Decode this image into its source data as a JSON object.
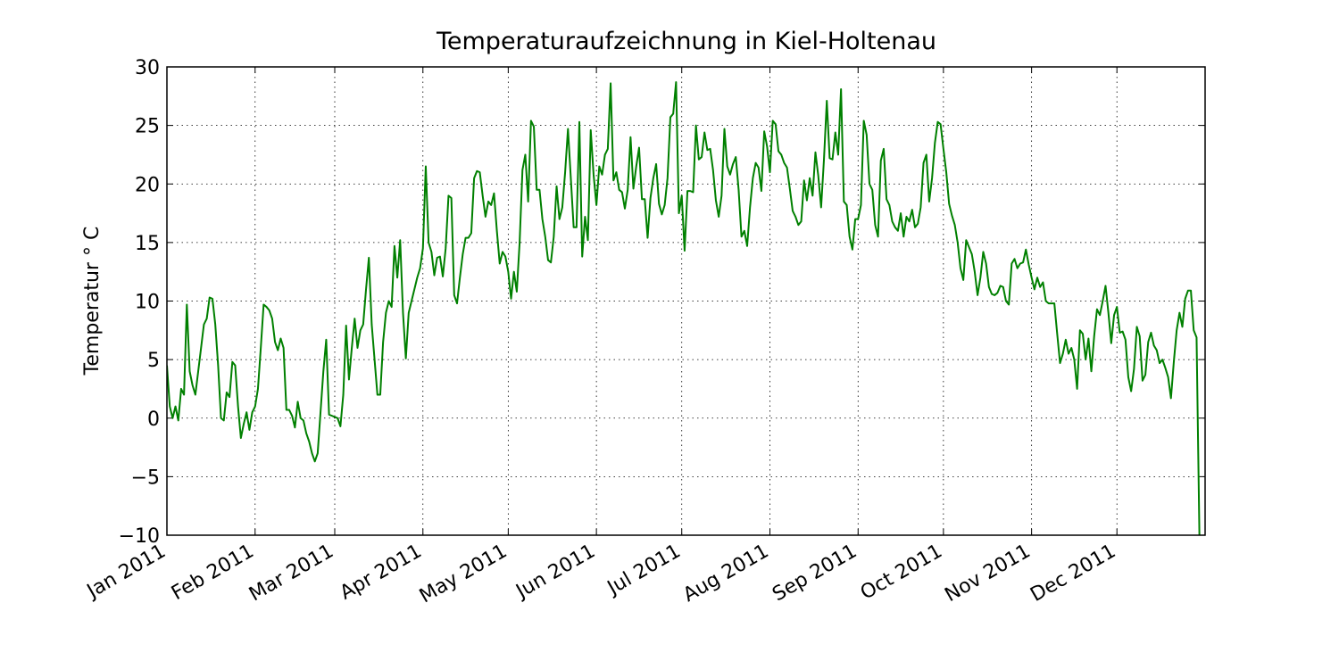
{
  "chart_data": {
    "type": "line",
    "title": "Temperaturaufzeichnung in Kiel-Holtenau",
    "ylabel": "Temperatur ° C",
    "color": "#008000",
    "grid": true,
    "xlim": [
      0,
      365
    ],
    "xticks": [
      {
        "value": 0,
        "label": "Jan 2011"
      },
      {
        "value": 31,
        "label": "Feb 2011"
      },
      {
        "value": 59,
        "label": "Mar 2011"
      },
      {
        "value": 90,
        "label": "Apr 2011"
      },
      {
        "value": 120,
        "label": "May 2011"
      },
      {
        "value": 151,
        "label": "Jun 2011"
      },
      {
        "value": 181,
        "label": "Jul 2011"
      },
      {
        "value": 212,
        "label": "Aug 2011"
      },
      {
        "value": 243,
        "label": "Sep 2011"
      },
      {
        "value": 273,
        "label": "Oct 2011"
      },
      {
        "value": 304,
        "label": "Nov 2011"
      },
      {
        "value": 334,
        "label": "Dec 2011"
      }
    ],
    "ylim": [
      -10,
      30
    ],
    "yticks": [
      {
        "value": -10,
        "label": "−10"
      },
      {
        "value": -5,
        "label": "−5"
      },
      0,
      5,
      10,
      15,
      20,
      25,
      30
    ],
    "values": [
      4.5,
      1,
      0,
      1,
      -0.2,
      2.5,
      2,
      9.7,
      4,
      2.8,
      2,
      4,
      6,
      8,
      8.5,
      10.3,
      10.2,
      8,
      4.5,
      0,
      -0.2,
      2.2,
      1.8,
      4.8,
      4.5,
      1,
      -1.7,
      -0.5,
      0.5,
      -1,
      0.5,
      1,
      2.5,
      6,
      9.7,
      9.5,
      9.2,
      8.5,
      6.5,
      5.8,
      6.8,
      6,
      0.7,
      0.7,
      0.2,
      -0.8,
      1.4,
      0,
      -0.2,
      -1.3,
      -2,
      -3,
      -3.7,
      -3,
      0.5,
      4,
      6.7,
      0.3,
      0.2,
      0.1,
      0,
      -0.7,
      2,
      7.9,
      3.3,
      6,
      8.5,
      6,
      7.5,
      8,
      11,
      13.7,
      8,
      5,
      2,
      2,
      6.5,
      9,
      10,
      9.5,
      14.7,
      12,
      15.2,
      9,
      5.1,
      9,
      10,
      11,
      12,
      12.8,
      14.5,
      21.5,
      15,
      14.2,
      12.2,
      13.7,
      13.8,
      12.1,
      14.5,
      19,
      18.8,
      10.5,
      9.8,
      12,
      14,
      15.4,
      15.4,
      15.8,
      20.5,
      21.1,
      21,
      19,
      17.2,
      18.5,
      18.2,
      19.2,
      16,
      13.2,
      14.2,
      13.8,
      12.5,
      10.2,
      12.5,
      10.8,
      15,
      21.2,
      22.5,
      18.5,
      25.4,
      24.9,
      19.5,
      19.5,
      17,
      15.5,
      13.5,
      13.3,
      15.5,
      19.8,
      17,
      18,
      21,
      24.7,
      20.5,
      16.3,
      16.3,
      25.3,
      13.8,
      17.2,
      15.2,
      24.6,
      20.8,
      18.2,
      21.5,
      20.8,
      22.5,
      23,
      28.6,
      20.3,
      21,
      19.5,
      19.3,
      17.9,
      19.5,
      24,
      19.6,
      21.5,
      23.1,
      18.7,
      18.7,
      15.4,
      18.8,
      20.5,
      21.7,
      18.3,
      17.4,
      18.2,
      20.5,
      25.7,
      26,
      28.7,
      17.5,
      19,
      14.3,
      19.4,
      19.4,
      19.3,
      25,
      22.1,
      22.3,
      24.4,
      22.9,
      23,
      21.2,
      18.6,
      17.2,
      19,
      24.7,
      21.5,
      20.8,
      21.7,
      22.3,
      19.5,
      15.5,
      16,
      14.7,
      18,
      20.5,
      21.8,
      21.4,
      19.4,
      24.5,
      23.2,
      21,
      25.4,
      25.1,
      22.8,
      22.5,
      21.8,
      21.4,
      19.6,
      17.7,
      17.2,
      16.5,
      16.8,
      20.3,
      18.6,
      20.5,
      19,
      22.7,
      20.7,
      18,
      22.1,
      27.1,
      22.2,
      22.1,
      24.4,
      22.5,
      28.1,
      18.5,
      18.2,
      15.5,
      14.4,
      17,
      17,
      18.2,
      25.4,
      24.2,
      20,
      19.5,
      16.5,
      15.5,
      22,
      23,
      18.7,
      18.2,
      16.8,
      16.3,
      16,
      17.5,
      15.5,
      17.2,
      16.8,
      17.8,
      16.3,
      16.6,
      18,
      21.8,
      22.5,
      18.5,
      20.5,
      23.5,
      25.3,
      25.1,
      23,
      21,
      18.3,
      17.3,
      16.5,
      15,
      12.8,
      11.8,
      15.2,
      14.6,
      14,
      12.5,
      10.5,
      12,
      14.2,
      13.2,
      11.2,
      10.6,
      10.5,
      10.7,
      11.3,
      11.2,
      10,
      9.7,
      13.2,
      13.6,
      12.8,
      13.2,
      13.3,
      14.4,
      13.1,
      12,
      11,
      12,
      11.2,
      11.6,
      10,
      9.8,
      9.8,
      9.8,
      7.2,
      4.7,
      5.5,
      6.7,
      5.5,
      6,
      5,
      2.5,
      7.5,
      7.2,
      5,
      6.8,
      4,
      7,
      9.3,
      8.8,
      10,
      11.3,
      9,
      6.4,
      8.8,
      9.5,
      7.3,
      7.4,
      6.7,
      3.5,
      2.3,
      4.2,
      7.8,
      7,
      3.2,
      3.7,
      6.5,
      7.3,
      6.2,
      5.8,
      4.7,
      5,
      4.3,
      3.5,
      1.7,
      4.8,
      7.5,
      9,
      7.8,
      10.2,
      10.9,
      10.9,
      7.5,
      6.9,
      -10
    ]
  }
}
